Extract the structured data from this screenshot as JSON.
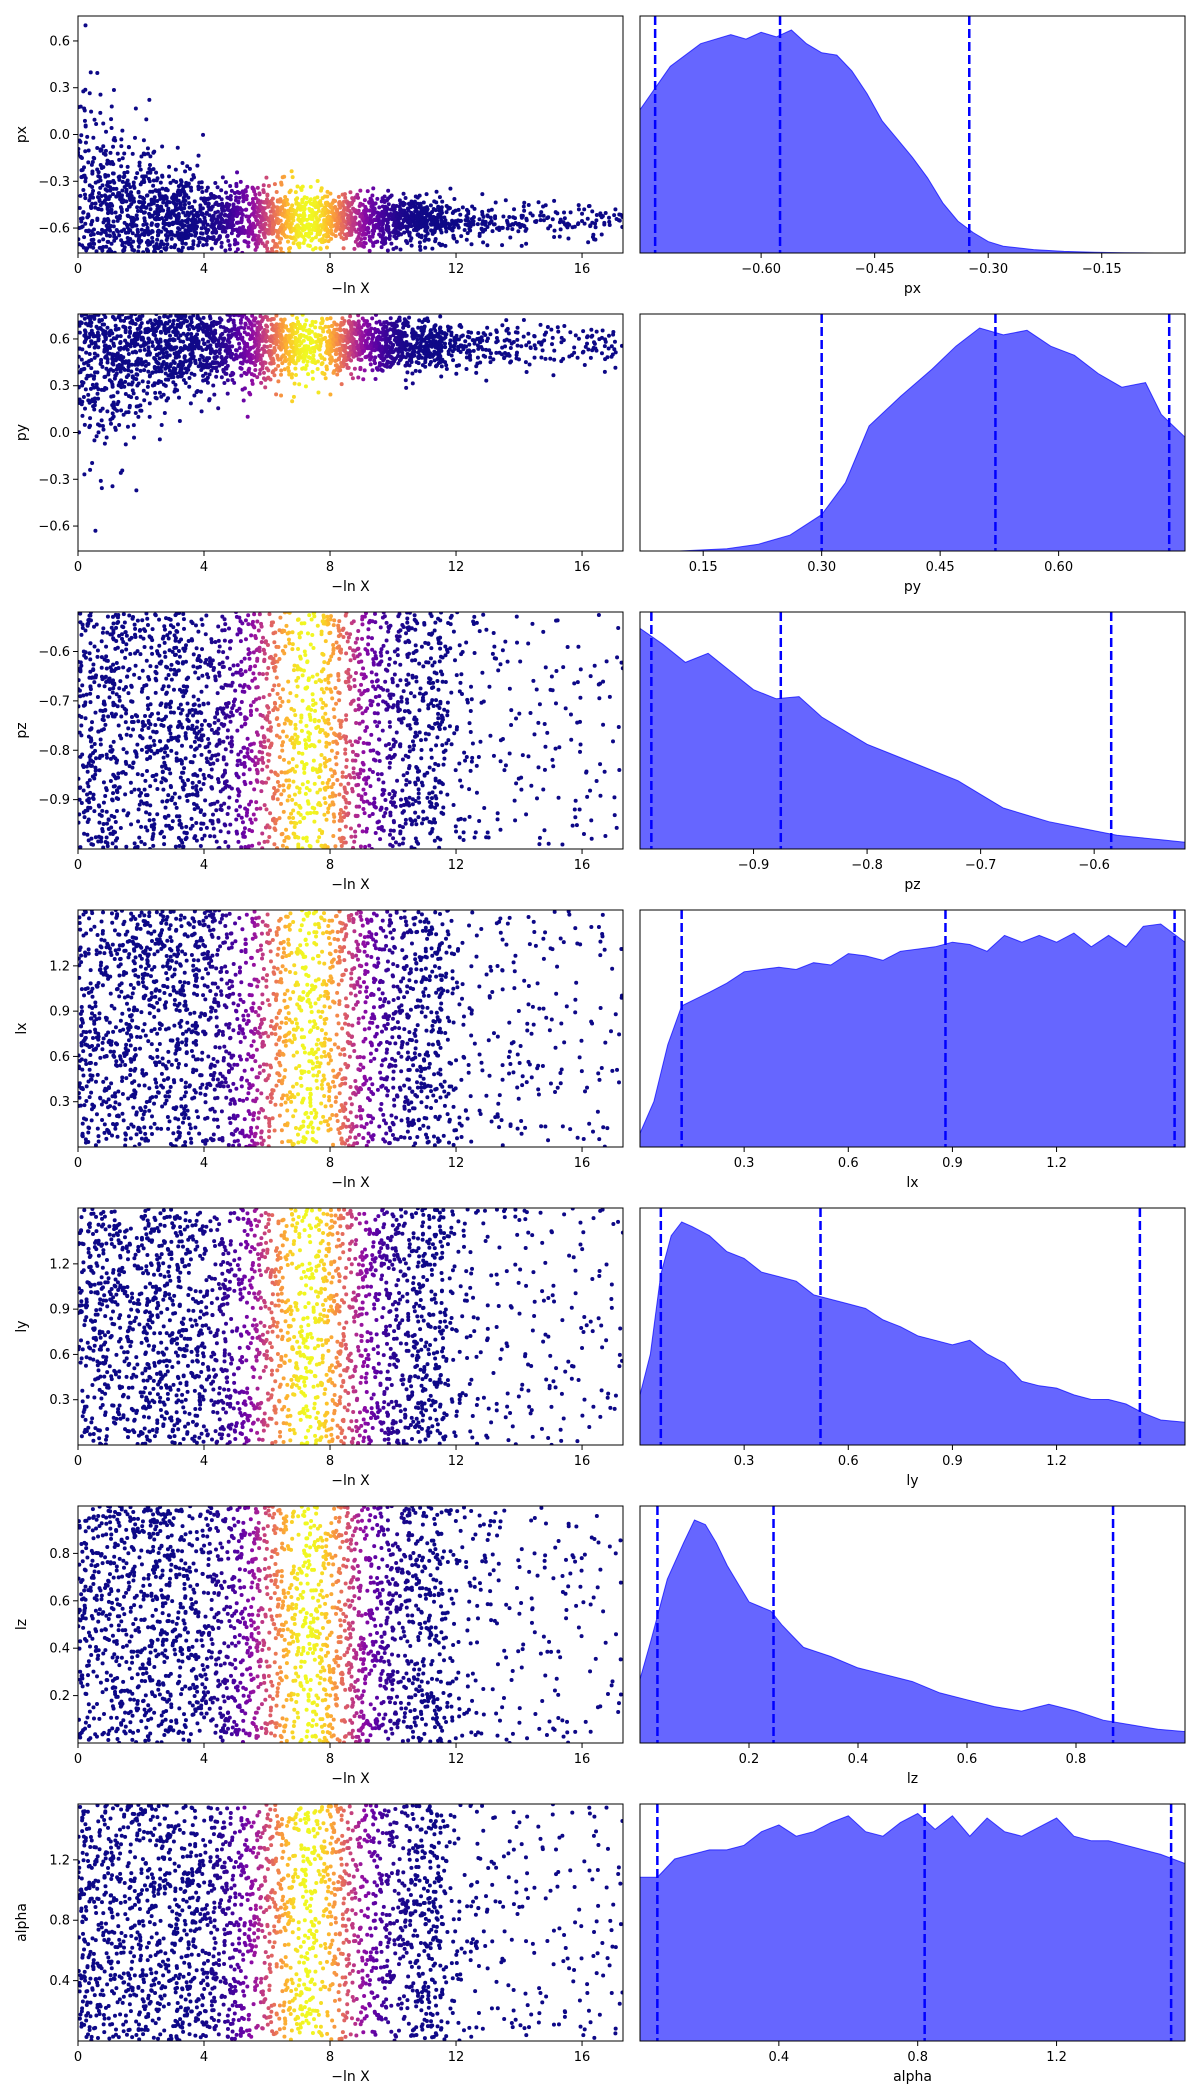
{
  "chart_data": [
    {
      "type": "scatter",
      "panel": "trace",
      "ylabel": "px",
      "xlabel": "−ln X",
      "xlim": [
        0,
        17.3
      ],
      "ylim": [
        -0.76,
        0.76
      ],
      "xticks": [
        0,
        4,
        8,
        12,
        16
      ],
      "yticks": [
        -0.6,
        -0.3,
        0.0,
        0.3,
        0.6
      ],
      "ytick_labels": [
        "−0.6",
        "−0.3",
        "0.0",
        "0.3",
        "0.6"
      ],
      "trend": "narrowing",
      "center": -0.55,
      "spread": 0.12,
      "colormap": "plasma",
      "peak_lnx": 7.3
    },
    {
      "type": "area",
      "panel": "posterior",
      "xlabel": "px",
      "xlim": [
        -0.76,
        0.76
      ],
      "xlim_display": [
        -0.76,
        -0.04
      ],
      "xticks": [
        -0.6,
        -0.45,
        -0.3,
        -0.15
      ],
      "xtick_labels": [
        "−0.60",
        "−0.45",
        "−0.30",
        "−0.15"
      ],
      "quantiles": [
        -0.74,
        -0.575,
        -0.325
      ],
      "x": [
        -0.76,
        -0.72,
        -0.68,
        -0.64,
        -0.62,
        -0.6,
        -0.58,
        -0.56,
        -0.54,
        -0.52,
        -0.5,
        -0.48,
        -0.46,
        -0.44,
        -0.42,
        -0.4,
        -0.38,
        -0.36,
        -0.34,
        -0.32,
        -0.3,
        -0.28,
        -0.24,
        -0.2,
        -0.16,
        -0.12,
        -0.08,
        -0.04
      ],
      "density": [
        0.63,
        0.82,
        0.92,
        0.96,
        0.94,
        0.97,
        0.95,
        0.98,
        0.92,
        0.88,
        0.87,
        0.8,
        0.7,
        0.58,
        0.5,
        0.42,
        0.33,
        0.22,
        0.14,
        0.09,
        0.05,
        0.03,
        0.015,
        0.007,
        0.003,
        0.001,
        0.0,
        0.0
      ],
      "color": "#0000ff"
    },
    {
      "type": "scatter",
      "panel": "trace",
      "ylabel": "py",
      "xlabel": "−ln X",
      "xlim": [
        0,
        17.3
      ],
      "ylim": [
        -0.76,
        0.76
      ],
      "xticks": [
        0,
        4,
        8,
        12,
        16
      ],
      "yticks": [
        -0.6,
        -0.3,
        0.0,
        0.3,
        0.6
      ],
      "ytick_labels": [
        "−0.6",
        "−0.3",
        "0.0",
        "0.3",
        "0.6"
      ],
      "trend": "narrowing",
      "center": 0.56,
      "spread": 0.14,
      "colormap": "plasma",
      "peak_lnx": 7.3
    },
    {
      "type": "area",
      "panel": "posterior",
      "xlabel": "py",
      "xlim": [
        0.07,
        0.76
      ],
      "xticks": [
        0.15,
        0.3,
        0.45,
        0.6
      ],
      "xtick_labels": [
        "0.15",
        "0.30",
        "0.45",
        "0.60"
      ],
      "quantiles": [
        0.3,
        0.52,
        0.74
      ],
      "x": [
        0.07,
        0.12,
        0.18,
        0.22,
        0.26,
        0.3,
        0.33,
        0.36,
        0.4,
        0.44,
        0.47,
        0.5,
        0.53,
        0.56,
        0.59,
        0.62,
        0.65,
        0.68,
        0.71,
        0.73,
        0.76
      ],
      "density": [
        0.0,
        0.0,
        0.01,
        0.03,
        0.07,
        0.16,
        0.3,
        0.55,
        0.68,
        0.8,
        0.9,
        0.98,
        0.95,
        0.97,
        0.9,
        0.86,
        0.78,
        0.72,
        0.74,
        0.6,
        0.5
      ],
      "color": "#0000ff"
    },
    {
      "type": "scatter",
      "panel": "trace",
      "ylabel": "pz",
      "xlabel": "−ln X",
      "xlim": [
        0,
        17.3
      ],
      "ylim": [
        -1.0,
        -0.52
      ],
      "xticks": [
        0,
        4,
        8,
        12,
        16
      ],
      "yticks": [
        -0.9,
        -0.8,
        -0.7,
        -0.6
      ],
      "ytick_labels": [
        "−0.9",
        "−0.8",
        "−0.7",
        "−0.6"
      ],
      "trend": "uniform",
      "colormap": "plasma",
      "peak_lnx": 7.3
    },
    {
      "type": "area",
      "panel": "posterior",
      "xlabel": "pz",
      "xlim": [
        -1.0,
        -0.52
      ],
      "xticks": [
        -0.9,
        -0.8,
        -0.7,
        -0.6
      ],
      "xtick_labels": [
        "−0.9",
        "−0.8",
        "−0.7",
        "−0.6"
      ],
      "quantiles": [
        -0.99,
        -0.876,
        -0.585
      ],
      "x": [
        -1.0,
        -0.98,
        -0.96,
        -0.94,
        -0.92,
        -0.9,
        -0.88,
        -0.86,
        -0.84,
        -0.82,
        -0.8,
        -0.78,
        -0.76,
        -0.74,
        -0.72,
        -0.7,
        -0.68,
        -0.66,
        -0.64,
        -0.62,
        -0.6,
        -0.58,
        -0.56,
        -0.54,
        -0.52
      ],
      "density": [
        0.97,
        0.9,
        0.82,
        0.86,
        0.78,
        0.7,
        0.66,
        0.67,
        0.58,
        0.52,
        0.46,
        0.42,
        0.38,
        0.34,
        0.3,
        0.24,
        0.18,
        0.15,
        0.12,
        0.1,
        0.08,
        0.06,
        0.05,
        0.04,
        0.03
      ],
      "color": "#0000ff"
    },
    {
      "type": "scatter",
      "panel": "trace",
      "ylabel": "lx",
      "xlabel": "−ln X",
      "xlim": [
        0,
        17.3
      ],
      "ylim": [
        0.0,
        1.57
      ],
      "xticks": [
        0,
        4,
        8,
        12,
        16
      ],
      "yticks": [
        0.3,
        0.6,
        0.9,
        1.2
      ],
      "ytick_labels": [
        "0.3",
        "0.6",
        "0.9",
        "1.2"
      ],
      "trend": "uniform",
      "colormap": "plasma",
      "peak_lnx": 7.3
    },
    {
      "type": "area",
      "panel": "posterior",
      "xlabel": "lx",
      "xlim": [
        0.0,
        1.57
      ],
      "xticks": [
        0.3,
        0.6,
        0.9,
        1.2
      ],
      "xtick_labels": [
        "0.3",
        "0.6",
        "0.9",
        "1.2"
      ],
      "quantiles": [
        0.12,
        0.88,
        1.54
      ],
      "x": [
        0.0,
        0.04,
        0.08,
        0.12,
        0.16,
        0.2,
        0.25,
        0.3,
        0.35,
        0.4,
        0.45,
        0.5,
        0.55,
        0.6,
        0.65,
        0.7,
        0.75,
        0.8,
        0.85,
        0.9,
        0.95,
        1.0,
        1.05,
        1.1,
        1.15,
        1.2,
        1.25,
        1.3,
        1.35,
        1.4,
        1.45,
        1.5,
        1.57
      ],
      "density": [
        0.06,
        0.2,
        0.45,
        0.62,
        0.65,
        0.68,
        0.72,
        0.77,
        0.78,
        0.79,
        0.78,
        0.81,
        0.8,
        0.85,
        0.84,
        0.82,
        0.86,
        0.87,
        0.88,
        0.9,
        0.89,
        0.86,
        0.93,
        0.9,
        0.93,
        0.9,
        0.94,
        0.88,
        0.93,
        0.88,
        0.97,
        0.98,
        0.9
      ],
      "color": "#0000ff"
    },
    {
      "type": "scatter",
      "panel": "trace",
      "ylabel": "ly",
      "xlabel": "−ln X",
      "xlim": [
        0,
        17.3
      ],
      "ylim": [
        0.0,
        1.57
      ],
      "xticks": [
        0,
        4,
        8,
        12,
        16
      ],
      "yticks": [
        0.3,
        0.6,
        0.9,
        1.2
      ],
      "ytick_labels": [
        "0.3",
        "0.6",
        "0.9",
        "1.2"
      ],
      "trend": "uniform",
      "colormap": "plasma",
      "peak_lnx": 7.3
    },
    {
      "type": "area",
      "panel": "posterior",
      "xlabel": "ly",
      "xlim": [
        0.0,
        1.57
      ],
      "xticks": [
        0.3,
        0.6,
        0.9,
        1.2
      ],
      "xtick_labels": [
        "0.3",
        "0.6",
        "0.9",
        "1.2"
      ],
      "quantiles": [
        0.06,
        0.52,
        1.44
      ],
      "x": [
        0.0,
        0.03,
        0.06,
        0.09,
        0.12,
        0.15,
        0.2,
        0.25,
        0.3,
        0.35,
        0.4,
        0.45,
        0.5,
        0.55,
        0.6,
        0.65,
        0.7,
        0.75,
        0.8,
        0.85,
        0.9,
        0.95,
        1.0,
        1.05,
        1.1,
        1.15,
        1.2,
        1.25,
        1.3,
        1.35,
        1.4,
        1.45,
        1.5,
        1.57
      ],
      "density": [
        0.22,
        0.4,
        0.75,
        0.92,
        0.98,
        0.96,
        0.92,
        0.85,
        0.82,
        0.76,
        0.74,
        0.72,
        0.66,
        0.64,
        0.62,
        0.6,
        0.55,
        0.52,
        0.48,
        0.46,
        0.44,
        0.46,
        0.4,
        0.36,
        0.28,
        0.26,
        0.25,
        0.22,
        0.2,
        0.2,
        0.18,
        0.14,
        0.11,
        0.1
      ],
      "color": "#0000ff"
    },
    {
      "type": "scatter",
      "panel": "trace",
      "ylabel": "lz",
      "xlabel": "−ln X",
      "xlim": [
        0,
        17.3
      ],
      "ylim": [
        0.0,
        1.0
      ],
      "xticks": [
        0,
        4,
        8,
        12,
        16
      ],
      "yticks": [
        0.2,
        0.4,
        0.6,
        0.8
      ],
      "ytick_labels": [
        "0.2",
        "0.4",
        "0.6",
        "0.8"
      ],
      "trend": "uniform",
      "colormap": "plasma",
      "peak_lnx": 7.3
    },
    {
      "type": "area",
      "panel": "posterior",
      "xlabel": "lz",
      "xlim": [
        0.0,
        1.0
      ],
      "xticks": [
        0.2,
        0.4,
        0.6,
        0.8
      ],
      "xtick_labels": [
        "0.2",
        "0.4",
        "0.6",
        "0.8"
      ],
      "quantiles": [
        0.032,
        0.245,
        0.868
      ],
      "x": [
        0.0,
        0.02,
        0.05,
        0.08,
        0.1,
        0.12,
        0.14,
        0.16,
        0.18,
        0.2,
        0.22,
        0.24,
        0.26,
        0.28,
        0.3,
        0.35,
        0.4,
        0.45,
        0.5,
        0.55,
        0.6,
        0.65,
        0.7,
        0.75,
        0.8,
        0.85,
        0.9,
        0.95,
        1.0
      ],
      "density": [
        0.28,
        0.45,
        0.72,
        0.88,
        0.98,
        0.96,
        0.88,
        0.78,
        0.7,
        0.62,
        0.6,
        0.58,
        0.52,
        0.47,
        0.42,
        0.38,
        0.33,
        0.3,
        0.27,
        0.22,
        0.19,
        0.16,
        0.14,
        0.17,
        0.14,
        0.1,
        0.08,
        0.06,
        0.05
      ],
      "color": "#0000ff"
    },
    {
      "type": "scatter",
      "panel": "trace",
      "ylabel": "alpha",
      "xlabel": "−ln X",
      "xlim": [
        0,
        17.3
      ],
      "ylim": [
        0.0,
        1.57
      ],
      "xticks": [
        0,
        4,
        8,
        12,
        16
      ],
      "yticks": [
        0.4,
        0.8,
        1.2
      ],
      "ytick_labels": [
        "0.4",
        "0.8",
        "1.2"
      ],
      "trend": "uniform",
      "colormap": "plasma",
      "peak_lnx": 7.3
    },
    {
      "type": "area",
      "panel": "posterior",
      "xlabel": "alpha",
      "xlim": [
        0.0,
        1.57
      ],
      "xticks": [
        0.4,
        0.8,
        1.2
      ],
      "xtick_labels": [
        "0.4",
        "0.8",
        "1.2"
      ],
      "quantiles": [
        0.05,
        0.82,
        1.53
      ],
      "x": [
        0.0,
        0.05,
        0.1,
        0.15,
        0.2,
        0.25,
        0.3,
        0.35,
        0.4,
        0.45,
        0.5,
        0.55,
        0.6,
        0.65,
        0.7,
        0.75,
        0.8,
        0.85,
        0.9,
        0.95,
        1.0,
        1.05,
        1.1,
        1.15,
        1.2,
        1.25,
        1.3,
        1.35,
        1.4,
        1.45,
        1.5,
        1.57
      ],
      "density": [
        0.72,
        0.72,
        0.8,
        0.82,
        0.84,
        0.84,
        0.86,
        0.92,
        0.95,
        0.9,
        0.92,
        0.96,
        0.99,
        0.92,
        0.9,
        0.96,
        1.0,
        0.93,
        0.99,
        0.9,
        0.98,
        0.92,
        0.9,
        0.94,
        0.98,
        0.9,
        0.88,
        0.88,
        0.86,
        0.84,
        0.82,
        0.78
      ],
      "color": "#0000ff"
    }
  ]
}
